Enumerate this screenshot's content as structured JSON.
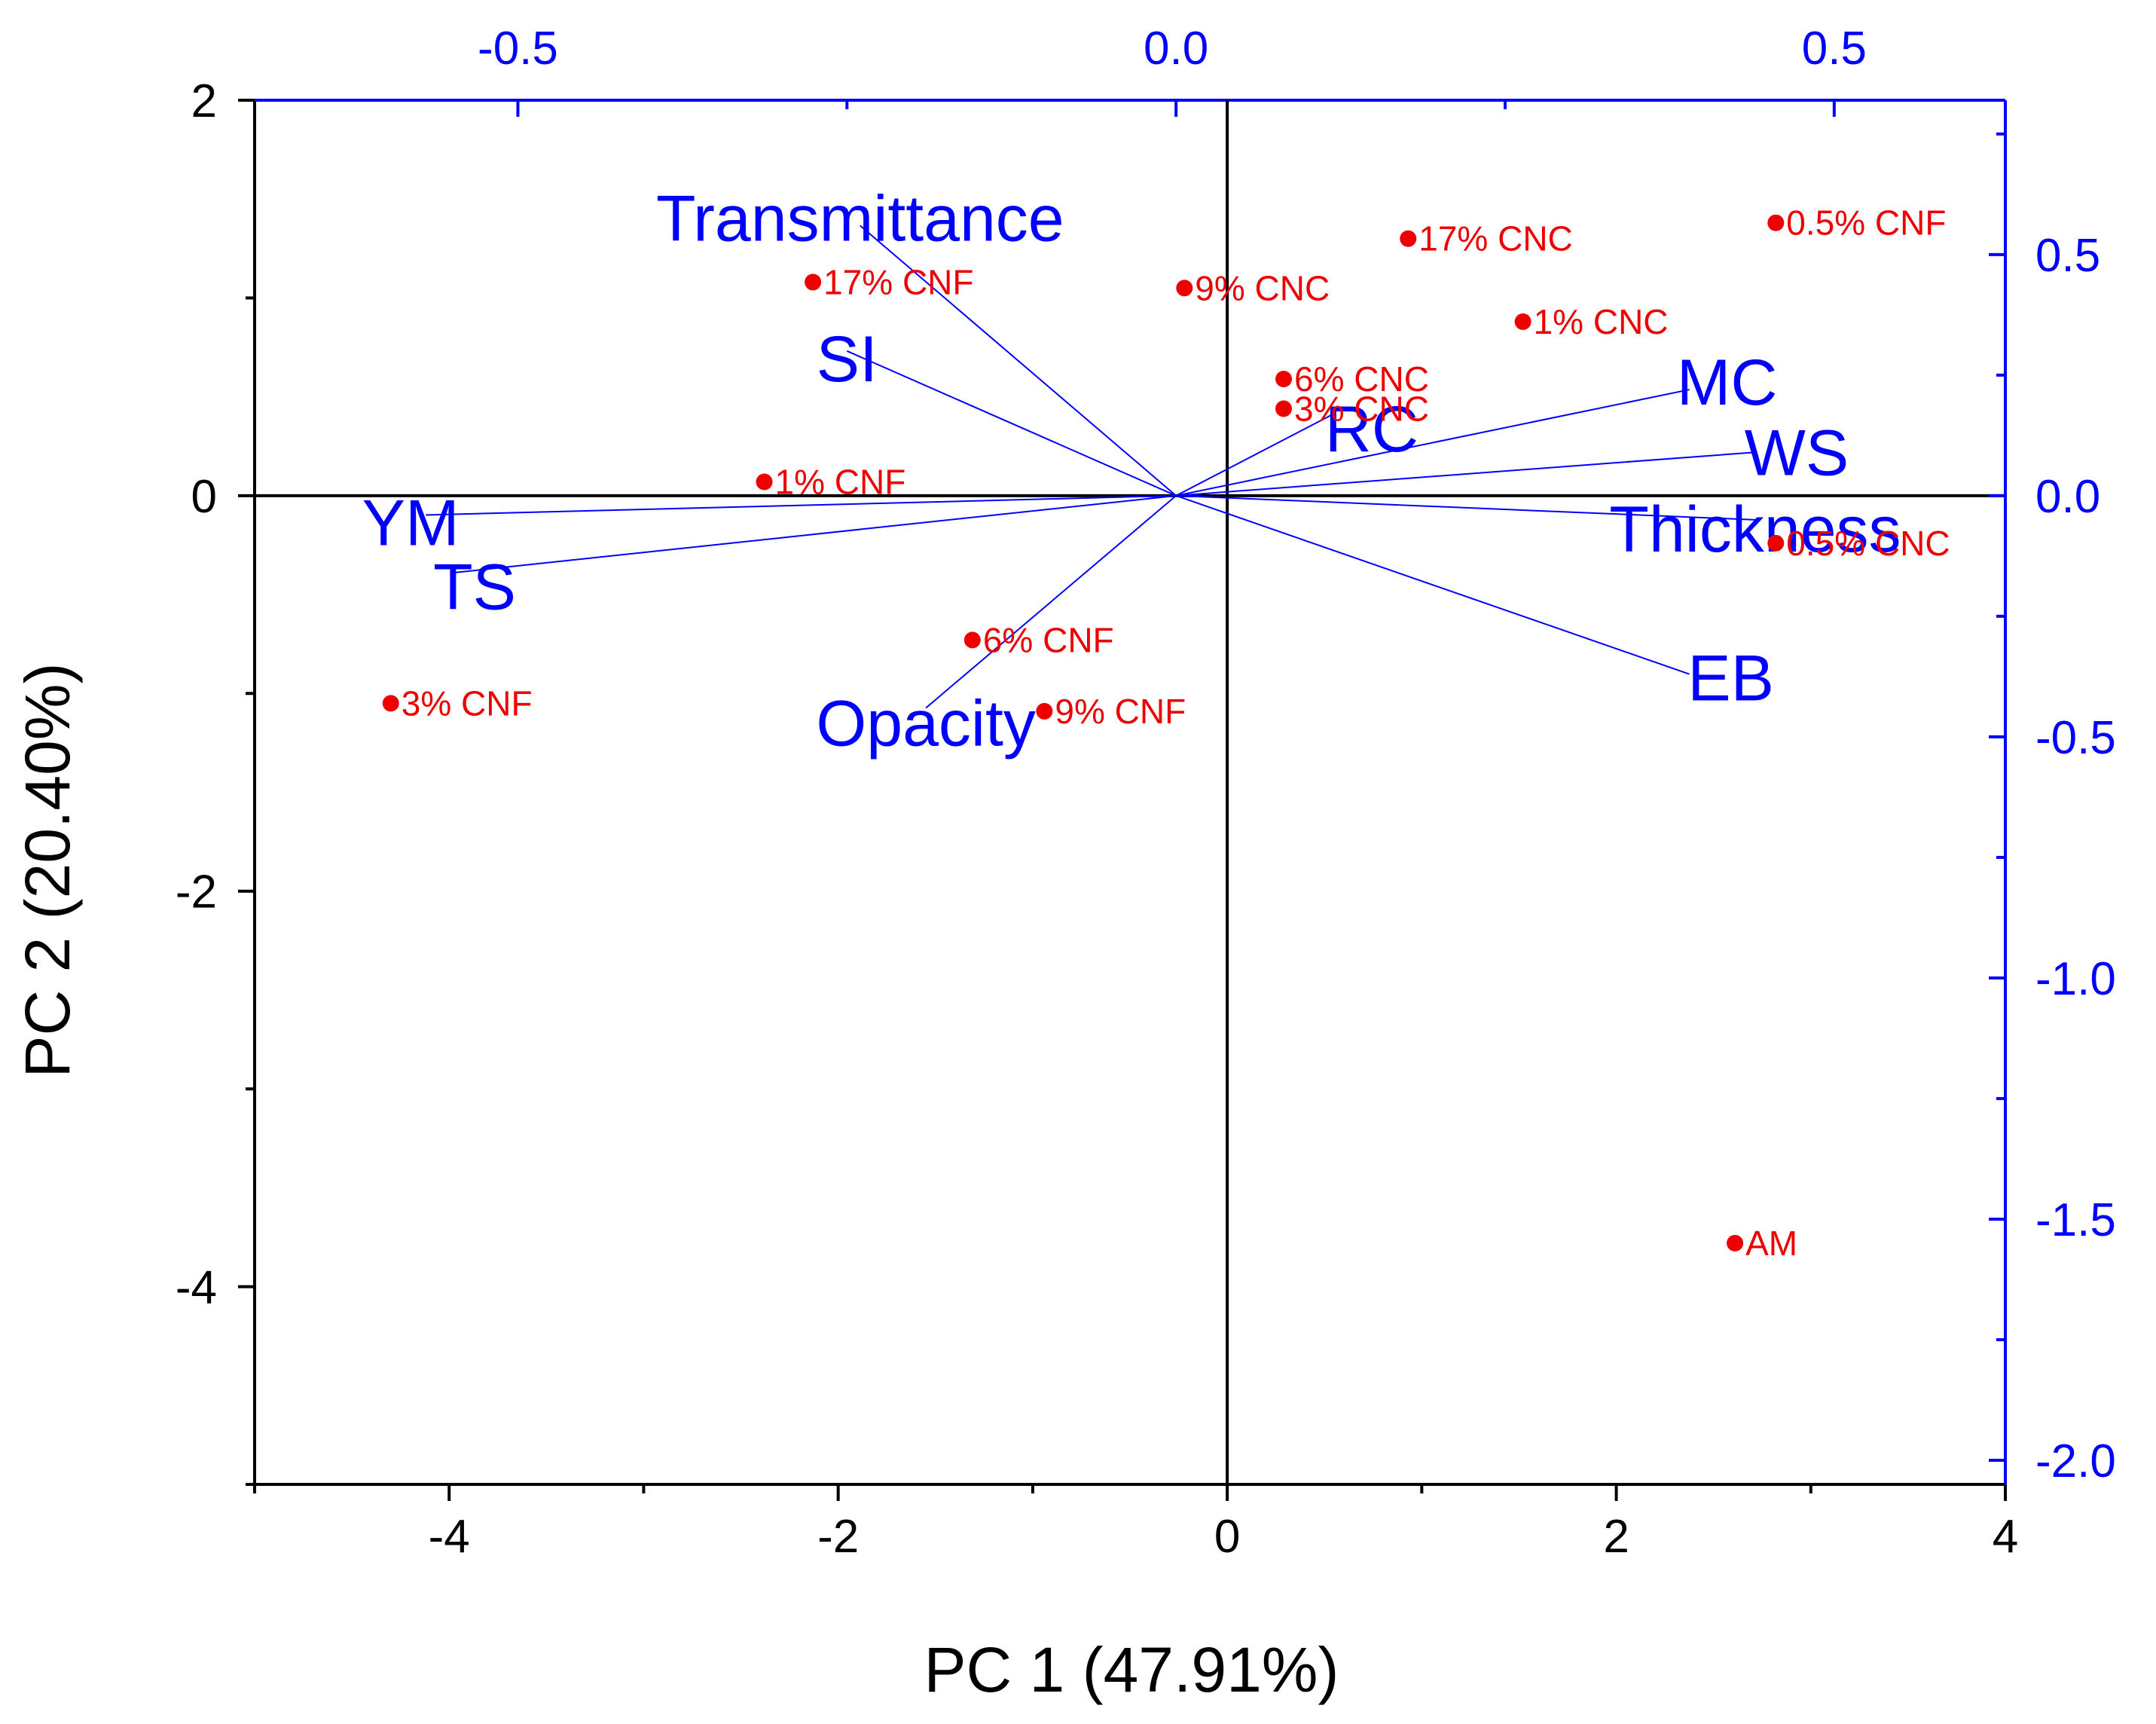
{
  "chart_data": {
    "type": "scatter",
    "subtype": "pca-biplot",
    "xlabel": "PC 1 (47.91%)",
    "ylabel": "PC 2 (20.40%)",
    "xlim": [
      -5,
      4
    ],
    "ylim": [
      -5,
      2
    ],
    "x_ticks": [
      -4,
      -2,
      0,
      2,
      4
    ],
    "y_ticks": [
      2,
      0,
      -2,
      -4
    ],
    "top_axis": {
      "lim": [
        -0.7,
        0.63
      ],
      "ticks": [
        -0.5,
        0.0,
        0.5
      ],
      "tick_labels": [
        "-0.5",
        "0.0",
        "0.5"
      ],
      "color": "#0000ff"
    },
    "right_axis": {
      "lim": [
        -2.05,
        0.82
      ],
      "ticks": [
        0.5,
        0.0,
        -0.5,
        -1.0,
        -1.5,
        -2.0
      ],
      "tick_labels": [
        "0.5",
        "0.0",
        "-0.5",
        "-1.0",
        "-1.5",
        "-2.0"
      ],
      "color": "#0000ff"
    },
    "x_tick_labels": [
      "-4",
      "-2",
      "0",
      "2",
      "4"
    ],
    "y_tick_labels": [
      "2",
      "0",
      "-2",
      "-4"
    ],
    "scores": [
      {
        "label": "17% CNC",
        "x": 0.93,
        "y": 1.3
      },
      {
        "label": "0.5% CNF",
        "x": 2.82,
        "y": 1.38
      },
      {
        "label": "17% CNF",
        "x": -2.13,
        "y": 1.08
      },
      {
        "label": "9% CNC",
        "x": -0.22,
        "y": 1.05
      },
      {
        "label": "1% CNC",
        "x": 1.52,
        "y": 0.88
      },
      {
        "label": "6% CNC",
        "x": 0.29,
        "y": 0.59
      },
      {
        "label": "3% CNC",
        "x": 0.29,
        "y": 0.44
      },
      {
        "label": "1% CNF",
        "x": -2.38,
        "y": 0.07
      },
      {
        "label": "0.5% CNC",
        "x": 2.82,
        "y": -0.24
      },
      {
        "label": "6% CNF",
        "x": -1.31,
        "y": -0.73
      },
      {
        "label": "3% CNF",
        "x": -4.3,
        "y": -1.05
      },
      {
        "label": "9% CNF",
        "x": -0.94,
        "y": -1.09
      },
      {
        "label": "AM",
        "x": 2.61,
        "y": -3.78
      }
    ],
    "loadings": [
      {
        "label": "Transmittance",
        "x": -0.24,
        "y": 0.56
      },
      {
        "label": "SI",
        "x": -0.25,
        "y": 0.3
      },
      {
        "label": "RC",
        "x": 0.12,
        "y": 0.17
      },
      {
        "label": "MC",
        "x": 0.39,
        "y": 0.22
      },
      {
        "label": "WS",
        "x": 0.44,
        "y": 0.09
      },
      {
        "label": "Thickness",
        "x": 0.44,
        "y": -0.05
      },
      {
        "label": "EB",
        "x": 0.39,
        "y": -0.37
      },
      {
        "label": "YM",
        "x": -0.57,
        "y": -0.04
      },
      {
        "label": "TS",
        "x": -0.55,
        "y": -0.16
      },
      {
        "label": "Opacity",
        "x": -0.19,
        "y": -0.44
      }
    ],
    "colors": {
      "scores": "#ee0000",
      "loadings": "#0000ff",
      "axes": "#000000"
    }
  }
}
